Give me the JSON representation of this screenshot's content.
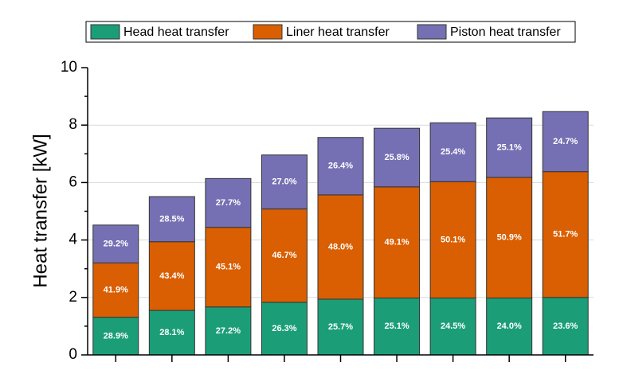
{
  "chart_data": {
    "type": "stacked_bar",
    "y_label": "Heat transfer [kW]",
    "categories": [
      null,
      null,
      null,
      null,
      null,
      null,
      null,
      null,
      null
    ],
    "series": [
      {
        "name": "Head heat transfer",
        "color": "#1b9e77",
        "values": [
          1.31,
          1.55,
          1.67,
          1.83,
          1.94,
          1.98,
          1.98,
          1.98,
          2.0
        ],
        "value_labels": [
          "28.9%",
          "28.1%",
          "27.2%",
          "26.3%",
          "25.7%",
          "25.1%",
          "24.5%",
          "24.0%",
          "23.6%"
        ]
      },
      {
        "name": "Liner heat transfer",
        "color": "#d95f02",
        "values": [
          1.89,
          2.39,
          2.77,
          3.25,
          3.63,
          3.87,
          4.05,
          4.2,
          4.38
        ],
        "value_labels": [
          "41.9%",
          "43.4%",
          "45.1%",
          "46.7%",
          "48.0%",
          "49.1%",
          "50.1%",
          "50.9%",
          "51.7%"
        ]
      },
      {
        "name": "Piston heat transfer",
        "color": "#7570b3",
        "values": [
          1.32,
          1.57,
          1.7,
          1.88,
          2.0,
          2.04,
          2.05,
          2.07,
          2.09
        ],
        "value_labels": [
          "29.2%",
          "28.5%",
          "27.7%",
          "27.0%",
          "26.4%",
          "25.8%",
          "25.4%",
          "25.1%",
          "24.7%"
        ]
      }
    ],
    "ylim": [
      0,
      10
    ],
    "yticks": [
      0,
      2,
      4,
      6,
      8,
      10
    ],
    "grid": true,
    "legend": "top"
  }
}
